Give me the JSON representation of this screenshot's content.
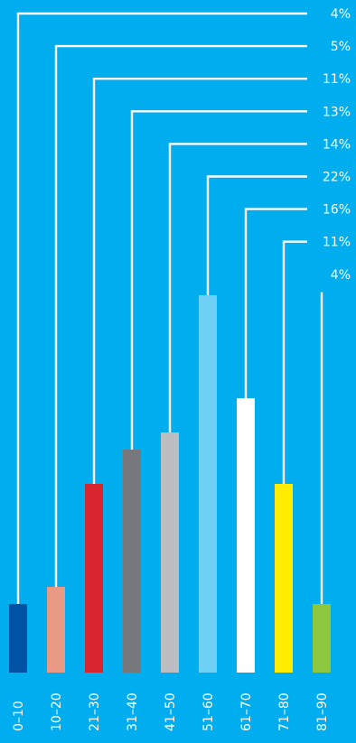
{
  "chart_data": {
    "type": "bar",
    "title": "",
    "xlabel": "",
    "ylabel": "",
    "categories": [
      "0–10",
      "10–20",
      "21–30",
      "31–40",
      "41–50",
      "51–60",
      "61–70",
      "71–80",
      "81–90"
    ],
    "values": [
      4,
      5,
      11,
      13,
      14,
      22,
      16,
      11,
      4
    ],
    "value_labels": [
      "4%",
      "5%",
      "11%",
      "13%",
      "14%",
      "22%",
      "16%",
      "11%",
      "4%"
    ],
    "colors": [
      "#0052A5",
      "#E89A84",
      "#D7262E",
      "#76787B",
      "#BBBDC0",
      "#6FD0F6",
      "#FFFFFF",
      "#FFED00",
      "#8DC63F"
    ],
    "background": "#00AEEF",
    "leader_line_color": "#FFFFFF",
    "grid": false,
    "legend": "none"
  }
}
